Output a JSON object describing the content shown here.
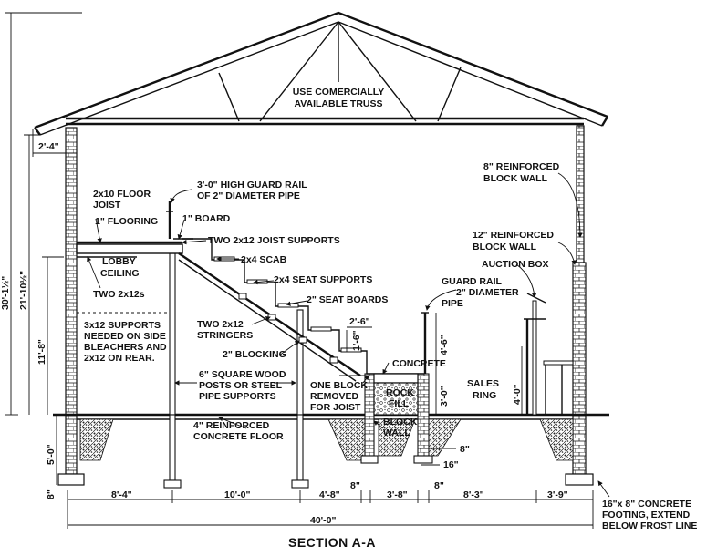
{
  "title": "SECTION A-A",
  "labels": {
    "truss": [
      "USE COMERCIALLY",
      "AVAILABLE TRUSS"
    ],
    "reinforced_block_wall_8": [
      "8\" REINFORCED",
      "BLOCK WALL"
    ],
    "reinforced_block_wall_12": [
      "12\" REINFORCED",
      "BLOCK WALL"
    ],
    "auction_box": "AUCTION BOX",
    "guard_rail_2": [
      "GUARD RAIL",
      "2\" DIAMETER",
      "PIPE"
    ],
    "sales_ring": [
      "SALES",
      "RING"
    ],
    "high_guard_rail": [
      "3'-0\" HIGH GUARD RAIL",
      "OF 2\" DIAMETER PIPE"
    ],
    "floor_joist": [
      "2x10 FLOOR",
      "JOIST"
    ],
    "flooring": "1\" FLOORING",
    "board": "1\" BOARD",
    "joist_supports": "TWO 2x12 JOIST SUPPORTS",
    "scab": "2x4 SCAB",
    "seat_supports": "2x4 SEAT SUPPORTS",
    "seat_boards": "2\" SEAT BOARDS",
    "lobby_ceiling": [
      "LOBBY",
      "CEILING"
    ],
    "two_2x12s": "TWO 2x12s",
    "supports_3x12": [
      "3x12 SUPPORTS",
      "NEEDED ON SIDE",
      "BLEACHERS AND",
      "2x12 ON REAR."
    ],
    "stringers": [
      "TWO 2x12",
      "STRINGERS"
    ],
    "blocking": "2\" BLOCKING",
    "concrete": "CONCRETE",
    "rock_fill": [
      "ROCK",
      "FILL"
    ],
    "posts": [
      "6\" SQUARE WOOD",
      "POSTS OR STEEL",
      "PIPE SUPPORTS"
    ],
    "one_block": [
      "ONE BLOCK",
      "REMOVED",
      "FOR JOIST"
    ],
    "block_wall": [
      "BLOCK",
      "WALL"
    ],
    "concrete_floor": [
      "4\" REINFORCED",
      "CONCRETE FLOOR"
    ],
    "footing": [
      "16\"x 8\" CONCRETE",
      "FOOTING, EXTEND",
      "BELOW FROST LINE"
    ]
  },
  "dims": {
    "eave": "2'-4\"",
    "total_height": "30'-1½\"",
    "wall_height": "21'-10½\"",
    "lobby_height": "11'-8\"",
    "footing_depth": "5'-0\"",
    "footing_small": "8\"",
    "step_width": "2'-6\"",
    "riser": "1'-6\"",
    "upper_rail": "4'-6\"",
    "ring_rail": "3'-0\"",
    "auction_rail": "4'-0\"",
    "wall_8": "8\"",
    "wall_16": "16\"",
    "post_8": "8\"",
    "bay1": "8'-4\"",
    "bay2": "10'-0\"",
    "bay3": "4'-8\"",
    "gap": "8\"",
    "bay4": "3'-8\"",
    "gap2": "8\"",
    "bay5": "8'-3\"",
    "bay6": "3'-9\"",
    "overall": "40'-0\""
  }
}
